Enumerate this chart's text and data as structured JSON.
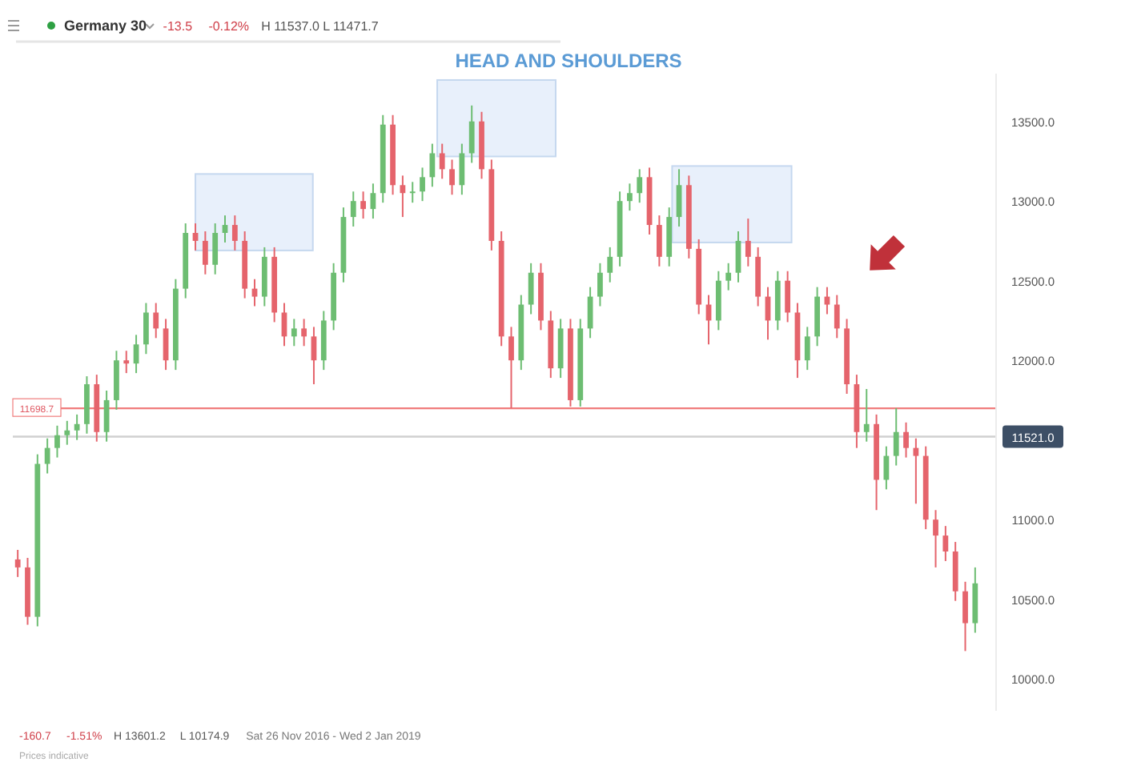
{
  "chart_data": {
    "type": "candlestick",
    "title": "HEAD AND SHOULDERS",
    "annotations": [
      "Germany 30",
      "-13.5",
      "-0.12%",
      "H 11537.0 L 11471.7",
      "-160.7",
      "-1.51%",
      "H 13601.2",
      "L 10174.9",
      "Sat 26 Nov 2016 - Wed 2 Jan 2019",
      "Prices indicative"
    ],
    "categories": [
      null,
      null,
      null,
      null,
      null,
      null,
      null,
      null,
      null,
      null,
      null,
      null,
      null,
      null,
      null,
      null,
      null,
      null,
      null,
      null,
      null,
      null,
      null,
      null,
      null,
      null,
      null,
      null,
      null,
      null,
      null,
      null,
      null,
      null,
      null,
      null,
      null,
      null,
      null,
      null,
      null,
      null,
      null,
      null,
      null,
      null,
      null,
      null,
      null,
      null,
      null,
      null,
      null,
      null,
      null,
      null,
      null,
      null,
      null,
      null,
      null,
      null,
      null,
      null,
      null,
      null,
      null,
      null,
      null,
      null,
      null,
      null,
      null,
      null,
      null,
      null,
      null,
      null,
      null,
      null,
      null,
      null,
      null,
      null,
      null,
      null,
      null,
      null,
      null,
      null,
      null,
      null,
      null,
      null,
      null,
      null,
      null,
      null
    ],
    "ohlc": [
      [
        10750,
        10810,
        10640,
        10700
      ],
      [
        10700,
        10760,
        10340,
        10390
      ],
      [
        10390,
        11410,
        10330,
        11350
      ],
      [
        11350,
        11510,
        11290,
        11450
      ],
      [
        11450,
        11590,
        11390,
        11530
      ],
      [
        11530,
        11620,
        11470,
        11560
      ],
      [
        11560,
        11660,
        11500,
        11600
      ],
      [
        11600,
        11900,
        11540,
        11850
      ],
      [
        11850,
        11910,
        11490,
        11550
      ],
      [
        11550,
        11810,
        11490,
        11750
      ],
      [
        11750,
        12060,
        11690,
        12000
      ],
      [
        12000,
        12060,
        11920,
        11980
      ],
      [
        11980,
        12160,
        11920,
        12100
      ],
      [
        12100,
        12360,
        12040,
        12300
      ],
      [
        12300,
        12360,
        12140,
        12200
      ],
      [
        12200,
        12260,
        11940,
        12000
      ],
      [
        12000,
        12510,
        11940,
        12450
      ],
      [
        12450,
        12860,
        12390,
        12800
      ],
      [
        12800,
        12860,
        12690,
        12750
      ],
      [
        12750,
        12810,
        12540,
        12600
      ],
      [
        12600,
        12860,
        12540,
        12800
      ],
      [
        12800,
        12910,
        12740,
        12850
      ],
      [
        12850,
        12910,
        12690,
        12750
      ],
      [
        12750,
        12810,
        12390,
        12450
      ],
      [
        12450,
        12510,
        12340,
        12400
      ],
      [
        12400,
        12710,
        12340,
        12650
      ],
      [
        12650,
        12710,
        12240,
        12300
      ],
      [
        12300,
        12360,
        12090,
        12150
      ],
      [
        12150,
        12260,
        12090,
        12200
      ],
      [
        12200,
        12260,
        12090,
        12150
      ],
      [
        12150,
        12210,
        11850,
        12000
      ],
      [
        12000,
        12310,
        11940,
        12250
      ],
      [
        12250,
        12610,
        12190,
        12550
      ],
      [
        12550,
        12960,
        12490,
        12900
      ],
      [
        12900,
        13060,
        12840,
        13000
      ],
      [
        13000,
        13060,
        12890,
        12950
      ],
      [
        12950,
        13110,
        12890,
        13050
      ],
      [
        13050,
        13540,
        12990,
        13480
      ],
      [
        13480,
        13540,
        13040,
        13100
      ],
      [
        13100,
        13160,
        12900,
        13050
      ],
      [
        13050,
        13120,
        12990,
        13060
      ],
      [
        13060,
        13210,
        13000,
        13150
      ],
      [
        13150,
        13360,
        13090,
        13300
      ],
      [
        13300,
        13360,
        13140,
        13200
      ],
      [
        13200,
        13260,
        13040,
        13100
      ],
      [
        13100,
        13360,
        13040,
        13300
      ],
      [
        13300,
        13600,
        13240,
        13500
      ],
      [
        13500,
        13560,
        13140,
        13200
      ],
      [
        13200,
        13260,
        12690,
        12750
      ],
      [
        12750,
        12810,
        12090,
        12150
      ],
      [
        12150,
        12210,
        11700,
        12000
      ],
      [
        12000,
        12410,
        11940,
        12350
      ],
      [
        12350,
        12610,
        12290,
        12550
      ],
      [
        12550,
        12610,
        12190,
        12250
      ],
      [
        12250,
        12310,
        11890,
        11950
      ],
      [
        11950,
        12260,
        11890,
        12200
      ],
      [
        12200,
        12260,
        11710,
        11750
      ],
      [
        11750,
        12260,
        11710,
        12200
      ],
      [
        12200,
        12460,
        12140,
        12400
      ],
      [
        12400,
        12610,
        12340,
        12550
      ],
      [
        12550,
        12710,
        12490,
        12650
      ],
      [
        12650,
        13060,
        12590,
        13000
      ],
      [
        13000,
        13110,
        12940,
        13050
      ],
      [
        13050,
        13200,
        12990,
        13150
      ],
      [
        13150,
        13210,
        12790,
        12850
      ],
      [
        12850,
        12910,
        12590,
        12650
      ],
      [
        12650,
        12960,
        12590,
        12900
      ],
      [
        12900,
        13200,
        12840,
        13100
      ],
      [
        13100,
        13160,
        12640,
        12700
      ],
      [
        12700,
        12760,
        12290,
        12350
      ],
      [
        12350,
        12410,
        12100,
        12250
      ],
      [
        12250,
        12560,
        12190,
        12500
      ],
      [
        12500,
        12610,
        12440,
        12550
      ],
      [
        12550,
        12810,
        12490,
        12750
      ],
      [
        12750,
        12890,
        12590,
        12650
      ],
      [
        12650,
        12710,
        12340,
        12400
      ],
      [
        12400,
        12460,
        12130,
        12250
      ],
      [
        12250,
        12560,
        12190,
        12500
      ],
      [
        12500,
        12560,
        12240,
        12300
      ],
      [
        12300,
        12360,
        11890,
        12000
      ],
      [
        12000,
        12210,
        11940,
        12150
      ],
      [
        12150,
        12460,
        12090,
        12400
      ],
      [
        12400,
        12460,
        12290,
        12350
      ],
      [
        12350,
        12410,
        12140,
        12200
      ],
      [
        12200,
        12260,
        11790,
        11850
      ],
      [
        11850,
        11910,
        11450,
        11550
      ],
      [
        11550,
        11820,
        11490,
        11600
      ],
      [
        11600,
        11660,
        11060,
        11250
      ],
      [
        11250,
        11460,
        11190,
        11400
      ],
      [
        11400,
        11700,
        11340,
        11550
      ],
      [
        11550,
        11610,
        11390,
        11450
      ],
      [
        11450,
        11510,
        11100,
        11400
      ],
      [
        11400,
        11460,
        10940,
        11000
      ],
      [
        11000,
        11060,
        10700,
        10900
      ],
      [
        10900,
        10960,
        10740,
        10800
      ],
      [
        10800,
        10860,
        10490,
        10550
      ],
      [
        10550,
        10610,
        10175,
        10350
      ],
      [
        10350,
        10700,
        10290,
        10600
      ]
    ],
    "colors": [
      "#e5646c",
      "#e5646c",
      "#6dbd72",
      "#6dbd72",
      "#6dbd72",
      "#6dbd72",
      "#6dbd72",
      "#6dbd72",
      "#e5646c",
      "#6dbd72",
      "#6dbd72",
      "#e5646c",
      "#6dbd72",
      "#6dbd72",
      "#e5646c",
      "#e5646c",
      "#6dbd72",
      "#6dbd72",
      "#e5646c",
      "#e5646c",
      "#6dbd72",
      "#6dbd72",
      "#e5646c",
      "#e5646c",
      "#e5646c",
      "#6dbd72",
      "#e5646c",
      "#e5646c",
      "#6dbd72",
      "#e5646c",
      "#e5646c",
      "#6dbd72",
      "#6dbd72",
      "#6dbd72",
      "#6dbd72",
      "#e5646c",
      "#6dbd72",
      "#6dbd72",
      "#e5646c",
      "#e5646c",
      "#6dbd72",
      "#6dbd72",
      "#6dbd72",
      "#e5646c",
      "#e5646c",
      "#6dbd72",
      "#6dbd72",
      "#e5646c",
      "#e5646c",
      "#e5646c",
      "#e5646c",
      "#6dbd72",
      "#6dbd72",
      "#e5646c",
      "#e5646c",
      "#6dbd72",
      "#e5646c",
      "#6dbd72",
      "#6dbd72",
      "#6dbd72",
      "#6dbd72",
      "#6dbd72",
      "#6dbd72",
      "#6dbd72",
      "#e5646c",
      "#e5646c",
      "#6dbd72",
      "#6dbd72",
      "#e5646c",
      "#e5646c",
      "#e5646c",
      "#6dbd72",
      "#6dbd72",
      "#6dbd72",
      "#e5646c",
      "#e5646c",
      "#e5646c",
      "#6dbd72",
      "#e5646c",
      "#e5646c",
      "#6dbd72",
      "#6dbd72",
      "#e5646c",
      "#e5646c",
      "#e5646c",
      "#e5646c",
      "#6dbd72",
      "#e5646c",
      "#6dbd72",
      "#6dbd72",
      "#e5646c",
      "#e5646c",
      "#e5646c",
      "#e5646c",
      "#e5646c",
      "#e5646c",
      "#e5646c",
      "#6dbd72"
    ],
    "ylim": [
      9800,
      13800
    ],
    "yticks": [
      {
        "value": 10000,
        "label": "10000.0"
      },
      {
        "value": 10500,
        "label": "10500.0"
      },
      {
        "value": 11000,
        "label": "11000.0"
      },
      {
        "value": 12000,
        "label": "12000.0"
      },
      {
        "value": 12500,
        "label": "12500.0"
      },
      {
        "value": 13000,
        "label": "13000.0"
      },
      {
        "value": 13500,
        "label": "13500.0"
      }
    ],
    "ref_lines": [
      {
        "axis": "y",
        "value": 11698.7,
        "label": "11698.7",
        "color": "#f07c7c"
      },
      {
        "axis": "y",
        "value": 11521.0,
        "label": "11521.0",
        "color": "#d0d0d0"
      }
    ],
    "tick_labels": "y",
    "grid": false
  }
}
